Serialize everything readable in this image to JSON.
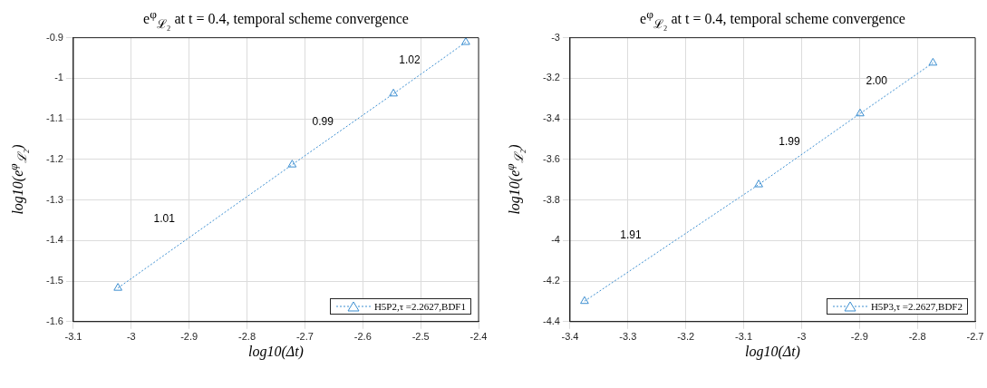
{
  "chart_data": [
    {
      "type": "line",
      "title": "e$^{φ}$$_{ℒ₂}$ at t = 0.4, temporal scheme convergence",
      "xlabel": "log10(Δt)",
      "ylabel": "log10(e$^{φ}$$_{ℒ₂}$)",
      "xlim": [
        -3.1,
        -2.4
      ],
      "xticks": [
        -3.1,
        -3,
        -2.9,
        -2.8,
        -2.7,
        -2.6,
        -2.5,
        -2.4
      ],
      "ylim": [
        -1.6,
        -0.9
      ],
      "yticks": [
        -1.6,
        -1.5,
        -1.4,
        -1.3,
        -1.2,
        -1.1,
        -1,
        -0.9
      ],
      "series": [
        {
          "name": "H5P2,τ =2.2627,BDF1",
          "color": "#3d8fd1",
          "x": [
            -3.023,
            -2.722,
            -2.547,
            -2.422
          ],
          "values": [
            -1.517,
            -1.213,
            -1.038,
            -0.911
          ]
        }
      ],
      "marker": "triangle",
      "line_style": "dotted",
      "grid": true,
      "legend": "bottom right",
      "annotations": [
        "1.01",
        "0.99",
        "1.02"
      ]
    },
    {
      "type": "line",
      "title": "e$^{φ}$$_{ℒ₂}$ at t = 0.4, temporal scheme convergence",
      "xlabel": "log10(Δt)",
      "ylabel": "log10(e$^{φ}$$_{ℒ₂}$)",
      "xlim": [
        -3.4,
        -2.7
      ],
      "xticks": [
        -3.4,
        -3.3,
        -3.2,
        -3.1,
        -3,
        -2.9,
        -2.8,
        -2.7
      ],
      "ylim": [
        -4.4,
        -3
      ],
      "yticks": [
        -4.4,
        -4.2,
        -4,
        -3.8,
        -3.6,
        -3.4,
        -3.2,
        -3
      ],
      "series": [
        {
          "name": "H5P3,τ =2.2627,BDF2",
          "color": "#3d8fd1",
          "x": [
            -3.375,
            -3.074,
            -2.899,
            -2.773
          ],
          "values": [
            -4.299,
            -3.724,
            -3.374,
            -3.124
          ]
        }
      ],
      "marker": "triangle",
      "line_style": "dotted",
      "grid": true,
      "legend": "bottom right",
      "annotations": [
        "1.91",
        "1.99",
        "2.00"
      ]
    }
  ]
}
